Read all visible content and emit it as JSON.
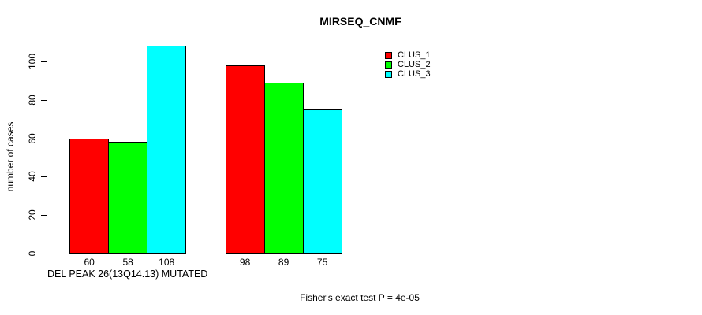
{
  "chart_data": {
    "type": "bar",
    "title": "MIRSEQ_CNMF",
    "ylabel": "number of cases",
    "xlabel": "DEL PEAK 26(13Q14.13) MUTATED",
    "annotation": "Fisher's exact test P = 4e-05",
    "categories": [
      "",
      ""
    ],
    "series": [
      {
        "name": "CLUS_1",
        "color": "#FF0000",
        "values": [
          60,
          98
        ]
      },
      {
        "name": "CLUS_2",
        "color": "#00FF00",
        "values": [
          58,
          89
        ]
      },
      {
        "name": "CLUS_3",
        "color": "#00FFFF",
        "values": [
          108,
          75
        ]
      }
    ],
    "bar_value_labels": [
      [
        60,
        58,
        108
      ],
      [
        98,
        89,
        75
      ]
    ],
    "yticks": [
      0,
      20,
      40,
      60,
      80,
      100
    ],
    "ylim": [
      0,
      108
    ],
    "grid": false,
    "legend_position": "top-right",
    "axis_color": "#000000",
    "bar_border_color": "#000000",
    "background_color": "#FFFFFF"
  }
}
